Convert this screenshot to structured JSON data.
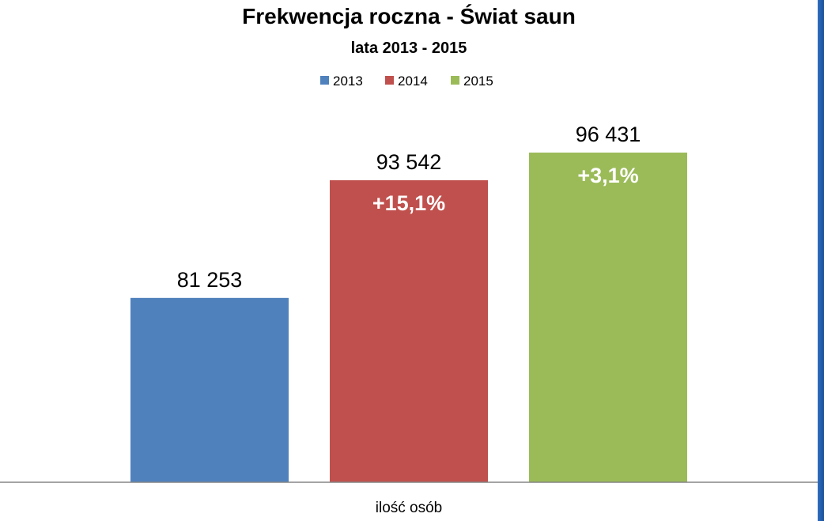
{
  "chart_data": {
    "type": "bar",
    "title": "Frekwencja roczna - Świat saun",
    "subtitle": "lata 2013 - 2015",
    "categories": [
      "ilość osób"
    ],
    "xlabel": "",
    "ylabel": "",
    "ylim": [
      0,
      100000
    ],
    "grid": false,
    "legend_position": "top",
    "series": [
      {
        "name": "2013",
        "values": [
          81253
        ],
        "label": "81 253",
        "change": "",
        "color": "#4f81bd"
      },
      {
        "name": "2014",
        "values": [
          93542
        ],
        "label": "93 542",
        "change": "+15,1%",
        "color": "#c0504d"
      },
      {
        "name": "2015",
        "values": [
          96431
        ],
        "label": "96 431",
        "change": "+3,1%",
        "color": "#9bbb59"
      }
    ]
  }
}
